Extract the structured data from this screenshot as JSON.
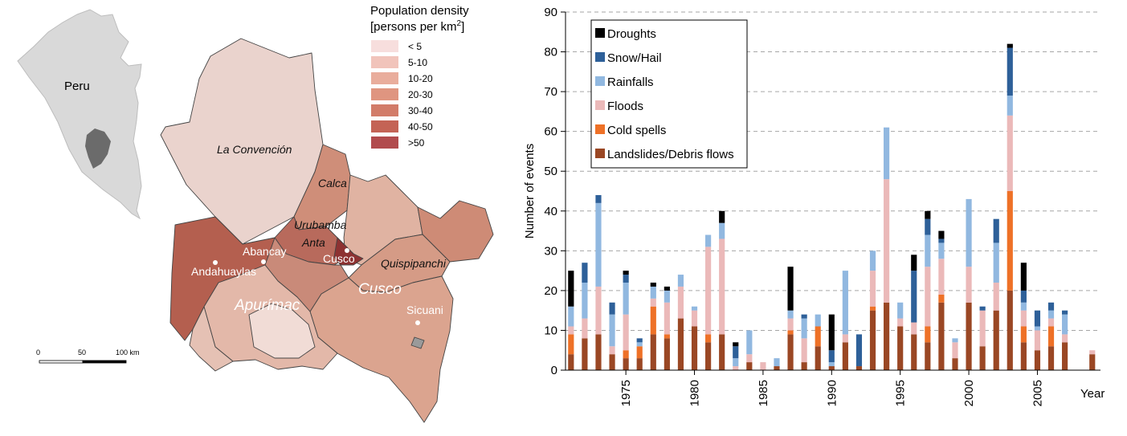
{
  "map": {
    "inset_label": "Peru",
    "legend_title_line1": "Population density",
    "legend_title_line2": "[persons per km",
    "legend_title_sup": "2",
    "legend_title_close": "]",
    "legend_items": [
      {
        "label": "< 5",
        "color": "#f7dedd"
      },
      {
        "label": "5-10",
        "color": "#f1c4bb"
      },
      {
        "label": "10-20",
        "color": "#e9ad9c"
      },
      {
        "label": "20-30",
        "color": "#df9580"
      },
      {
        "label": "30-40",
        "color": "#d27c69"
      },
      {
        "label": "40-50",
        "color": "#c46355"
      },
      {
        "label": ">50",
        "color": "#b14b4d"
      }
    ],
    "scale_labels": [
      "0",
      "50",
      "100 km"
    ],
    "province_labels": [
      "La Convención",
      "Calca",
      "Urubamba",
      "Anta",
      "Quispipanchi"
    ],
    "region_labels": [
      "Apurímac",
      "Cusco"
    ],
    "cities": [
      "Abancay",
      "Andahuaylas",
      "Cusco",
      "Sicuani"
    ]
  },
  "chart_data": {
    "type": "bar",
    "stacked": true,
    "xlabel": "Year",
    "ylabel": "Number of events",
    "ylim": [
      0,
      90
    ],
    "yticks": [
      0,
      10,
      20,
      30,
      40,
      50,
      60,
      70,
      80,
      90
    ],
    "xticks": [
      1975,
      1980,
      1985,
      1990,
      1995,
      2000,
      2005
    ],
    "grid": "horizontal-dashed",
    "legend_position": "top-left",
    "x": [
      1971,
      1972,
      1973,
      1974,
      1975,
      1976,
      1977,
      1978,
      1979,
      1980,
      1981,
      1982,
      1983,
      1984,
      1985,
      1986,
      1987,
      1988,
      1989,
      1990,
      1991,
      1992,
      1993,
      1994,
      1995,
      1996,
      1997,
      1998,
      1999,
      2000,
      2001,
      2002,
      2003,
      2004,
      2005,
      2006,
      2007,
      2008,
      2009
    ],
    "series": [
      {
        "name": "Landslides/Debris flows",
        "color": "#9a4724",
        "values": [
          4,
          8,
          9,
          4,
          3,
          3,
          9,
          8,
          13,
          11,
          7,
          9,
          0,
          2,
          0,
          1,
          9,
          2,
          6,
          1,
          7,
          1,
          15,
          17,
          11,
          9,
          7,
          17,
          3,
          17,
          6,
          15,
          20,
          7,
          5,
          6,
          7,
          0,
          4
        ]
      },
      {
        "name": "Cold spells",
        "color": "#ee7127",
        "values": [
          5,
          0,
          0,
          0,
          2,
          3,
          7,
          1,
          0,
          0,
          2,
          0,
          0,
          0,
          0,
          0,
          1,
          0,
          5,
          0,
          0,
          0,
          1,
          0,
          0,
          0,
          4,
          2,
          0,
          0,
          0,
          0,
          25,
          4,
          0,
          5,
          0,
          0,
          0
        ]
      },
      {
        "name": "Floods",
        "color": "#ebb9b9",
        "values": [
          2,
          5,
          12,
          2,
          9,
          0,
          2,
          8,
          8,
          4,
          22,
          24,
          1,
          2,
          2,
          0,
          3,
          6,
          0,
          0,
          2,
          0,
          9,
          31,
          2,
          3,
          15,
          9,
          4,
          9,
          9,
          7,
          19,
          4,
          5,
          2,
          2,
          0,
          1
        ]
      },
      {
        "name": "Rainfalls",
        "color": "#91b8e0",
        "values": [
          5,
          9,
          21,
          8,
          8,
          1,
          3,
          3,
          3,
          1,
          3,
          4,
          2,
          6,
          0,
          2,
          2,
          5,
          3,
          1,
          16,
          0,
          5,
          13,
          4,
          0,
          8,
          4,
          1,
          17,
          0,
          10,
          5,
          2,
          1,
          2,
          5,
          0,
          0
        ]
      },
      {
        "name": "Snow/Hail",
        "color": "#2e6099",
        "values": [
          0,
          5,
          2,
          3,
          2,
          1,
          0,
          0,
          0,
          0,
          0,
          0,
          3,
          0,
          0,
          0,
          0,
          1,
          0,
          3,
          0,
          8,
          0,
          0,
          0,
          13,
          4,
          1,
          0,
          0,
          1,
          6,
          12,
          3,
          4,
          2,
          1,
          0,
          0
        ]
      },
      {
        "name": "Droughts",
        "color": "#000000",
        "values": [
          9,
          0,
          0,
          0,
          1,
          0,
          1,
          1,
          0,
          0,
          0,
          3,
          1,
          0,
          0,
          0,
          11,
          0,
          0,
          9,
          0,
          0,
          0,
          0,
          0,
          4,
          2,
          2,
          0,
          0,
          0,
          0,
          1,
          7,
          0,
          0,
          0,
          0,
          0
        ]
      }
    ]
  }
}
